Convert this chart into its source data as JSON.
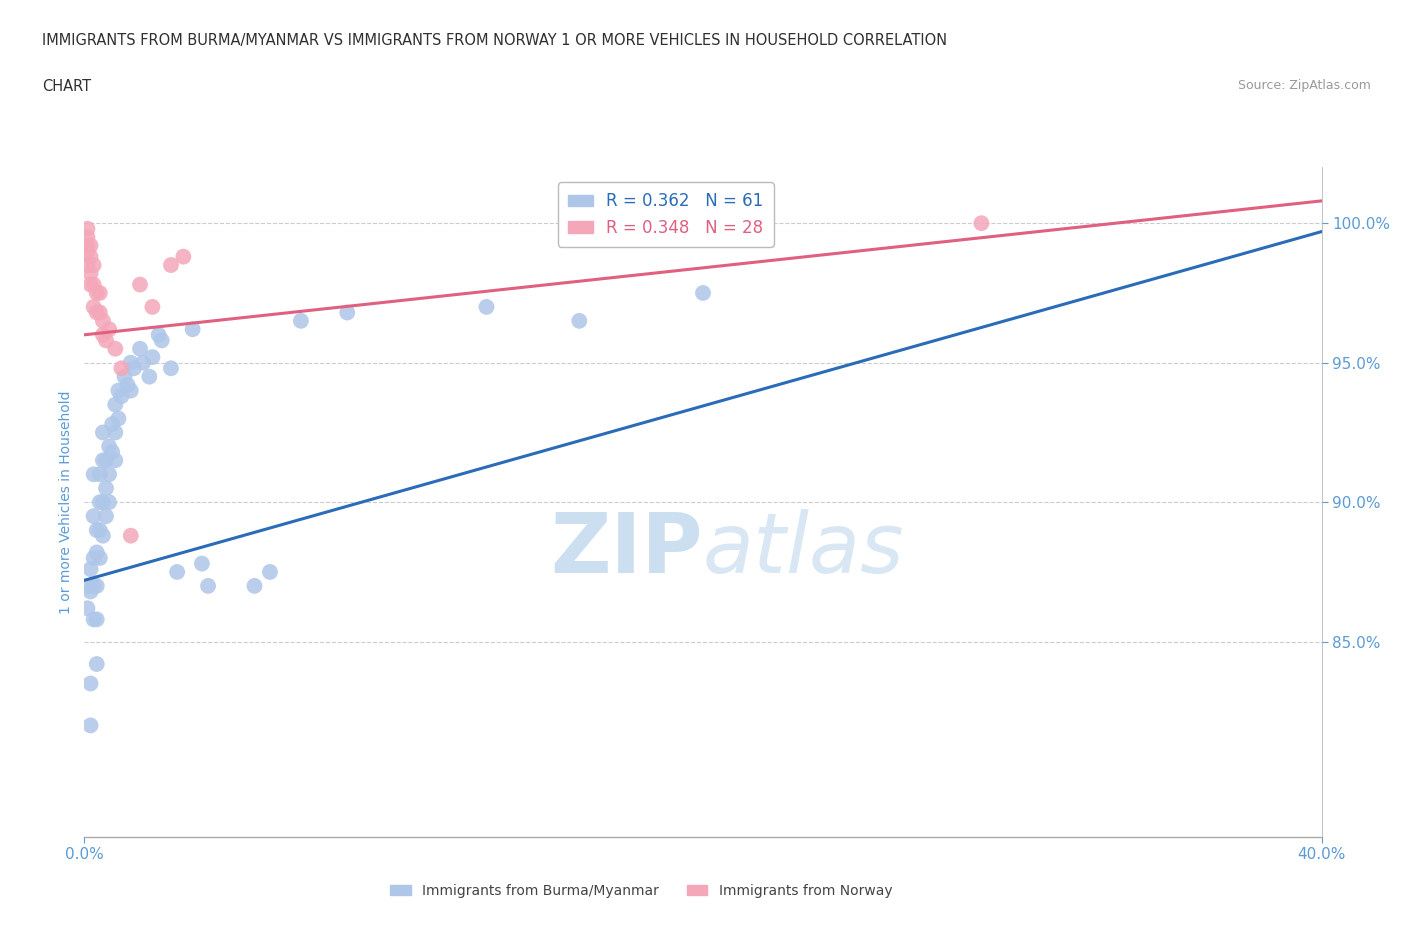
{
  "title_line1": "IMMIGRANTS FROM BURMA/MYANMAR VS IMMIGRANTS FROM NORWAY 1 OR MORE VEHICLES IN HOUSEHOLD CORRELATION",
  "title_line2": "CHART",
  "source": "Source: ZipAtlas.com",
  "ylabel": "1 or more Vehicles in Household",
  "xlim": [
    0.0,
    0.4
  ],
  "ylim": [
    0.78,
    1.02
  ],
  "xtick_positions": [
    0.0,
    0.4
  ],
  "xticklabels": [
    "0.0%",
    "40.0%"
  ],
  "ytick_positions": [
    0.85,
    0.9,
    0.95,
    1.0
  ],
  "yticklabels": [
    "85.0%",
    "90.0%",
    "95.0%",
    "100.0%"
  ],
  "legend_burma_label": "R = 0.362   N = 61",
  "legend_norway_label": "R = 0.348   N = 28",
  "burma_color": "#aec6e8",
  "norway_color": "#f4a7b9",
  "burma_line_color": "#2b6cb8",
  "norway_line_color": "#e06080",
  "watermark_zip": "ZIP",
  "watermark_atlas": "atlas",
  "watermark_color": "#ccdff0",
  "background_color": "#ffffff",
  "grid_color": "#cccccc",
  "title_color": "#303030",
  "axis_label_color": "#5b9bd5",
  "tick_color": "#5b9bd5",
  "burma_x": [
    0.001,
    0.001,
    0.002,
    0.002,
    0.002,
    0.002,
    0.003,
    0.003,
    0.003,
    0.003,
    0.003,
    0.004,
    0.004,
    0.004,
    0.004,
    0.004,
    0.005,
    0.005,
    0.005,
    0.005,
    0.006,
    0.006,
    0.006,
    0.006,
    0.007,
    0.007,
    0.007,
    0.008,
    0.008,
    0.008,
    0.009,
    0.009,
    0.01,
    0.01,
    0.01,
    0.011,
    0.011,
    0.012,
    0.013,
    0.014,
    0.015,
    0.015,
    0.016,
    0.018,
    0.019,
    0.021,
    0.022,
    0.024,
    0.025,
    0.028,
    0.03,
    0.035,
    0.038,
    0.04,
    0.055,
    0.06,
    0.07,
    0.085,
    0.13,
    0.16,
    0.2
  ],
  "burma_y": [
    0.87,
    0.862,
    0.82,
    0.876,
    0.868,
    0.835,
    0.91,
    0.895,
    0.88,
    0.87,
    0.858,
    0.89,
    0.882,
    0.87,
    0.858,
    0.842,
    0.91,
    0.9,
    0.89,
    0.88,
    0.925,
    0.915,
    0.9,
    0.888,
    0.915,
    0.905,
    0.895,
    0.92,
    0.91,
    0.9,
    0.928,
    0.918,
    0.935,
    0.925,
    0.915,
    0.94,
    0.93,
    0.938,
    0.945,
    0.942,
    0.95,
    0.94,
    0.948,
    0.955,
    0.95,
    0.945,
    0.952,
    0.96,
    0.958,
    0.948,
    0.875,
    0.962,
    0.878,
    0.87,
    0.87,
    0.875,
    0.965,
    0.968,
    0.97,
    0.965,
    0.975
  ],
  "norway_x": [
    0.001,
    0.001,
    0.001,
    0.001,
    0.001,
    0.002,
    0.002,
    0.002,
    0.002,
    0.003,
    0.003,
    0.003,
    0.004,
    0.004,
    0.005,
    0.005,
    0.006,
    0.006,
    0.007,
    0.008,
    0.01,
    0.012,
    0.015,
    0.018,
    0.022,
    0.028,
    0.032,
    0.29
  ],
  "norway_y": [
    0.998,
    0.995,
    0.992,
    0.99,
    0.985,
    0.992,
    0.988,
    0.982,
    0.978,
    0.985,
    0.978,
    0.97,
    0.975,
    0.968,
    0.975,
    0.968,
    0.965,
    0.96,
    0.958,
    0.962,
    0.955,
    0.948,
    0.888,
    0.978,
    0.97,
    0.985,
    0.988,
    1.0
  ],
  "burma_line_x": [
    0.0,
    0.4
  ],
  "burma_line_y": [
    0.872,
    0.997
  ],
  "norway_line_x": [
    0.0,
    0.4
  ],
  "norway_line_y": [
    0.96,
    1.008
  ]
}
